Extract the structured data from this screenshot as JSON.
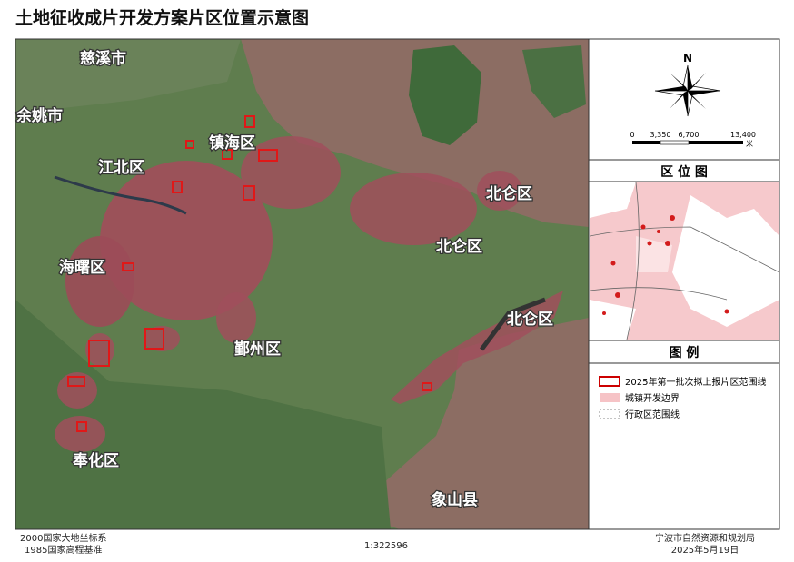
{
  "header": {
    "title": "土地征收成片开发方案片区位置示意图"
  },
  "map": {
    "labels": [
      "慈溪市",
      "余姚市",
      "镇海区",
      "江北区",
      "北仑区",
      "北仑区",
      "北仑区",
      "海曙区",
      "鄞州区",
      "奉化区",
      "象山县"
    ]
  },
  "north": "N",
  "scale_bar": {
    "ticks": [
      "0",
      "3,350",
      "6,700",
      "13,400"
    ],
    "unit": "米"
  },
  "inset": {
    "title": "区 位 图"
  },
  "legend": {
    "title": "图 例",
    "items": [
      "2025年第一批次拟上报片区范围线",
      "城镇开发边界",
      "行政区范围线"
    ]
  },
  "footer": {
    "left": [
      "2000国家大地坐标系",
      "1985国家高程基准"
    ],
    "scale": "1:322596",
    "right": [
      "宁波市自然资源和规划局",
      "2025年5月19日"
    ]
  }
}
